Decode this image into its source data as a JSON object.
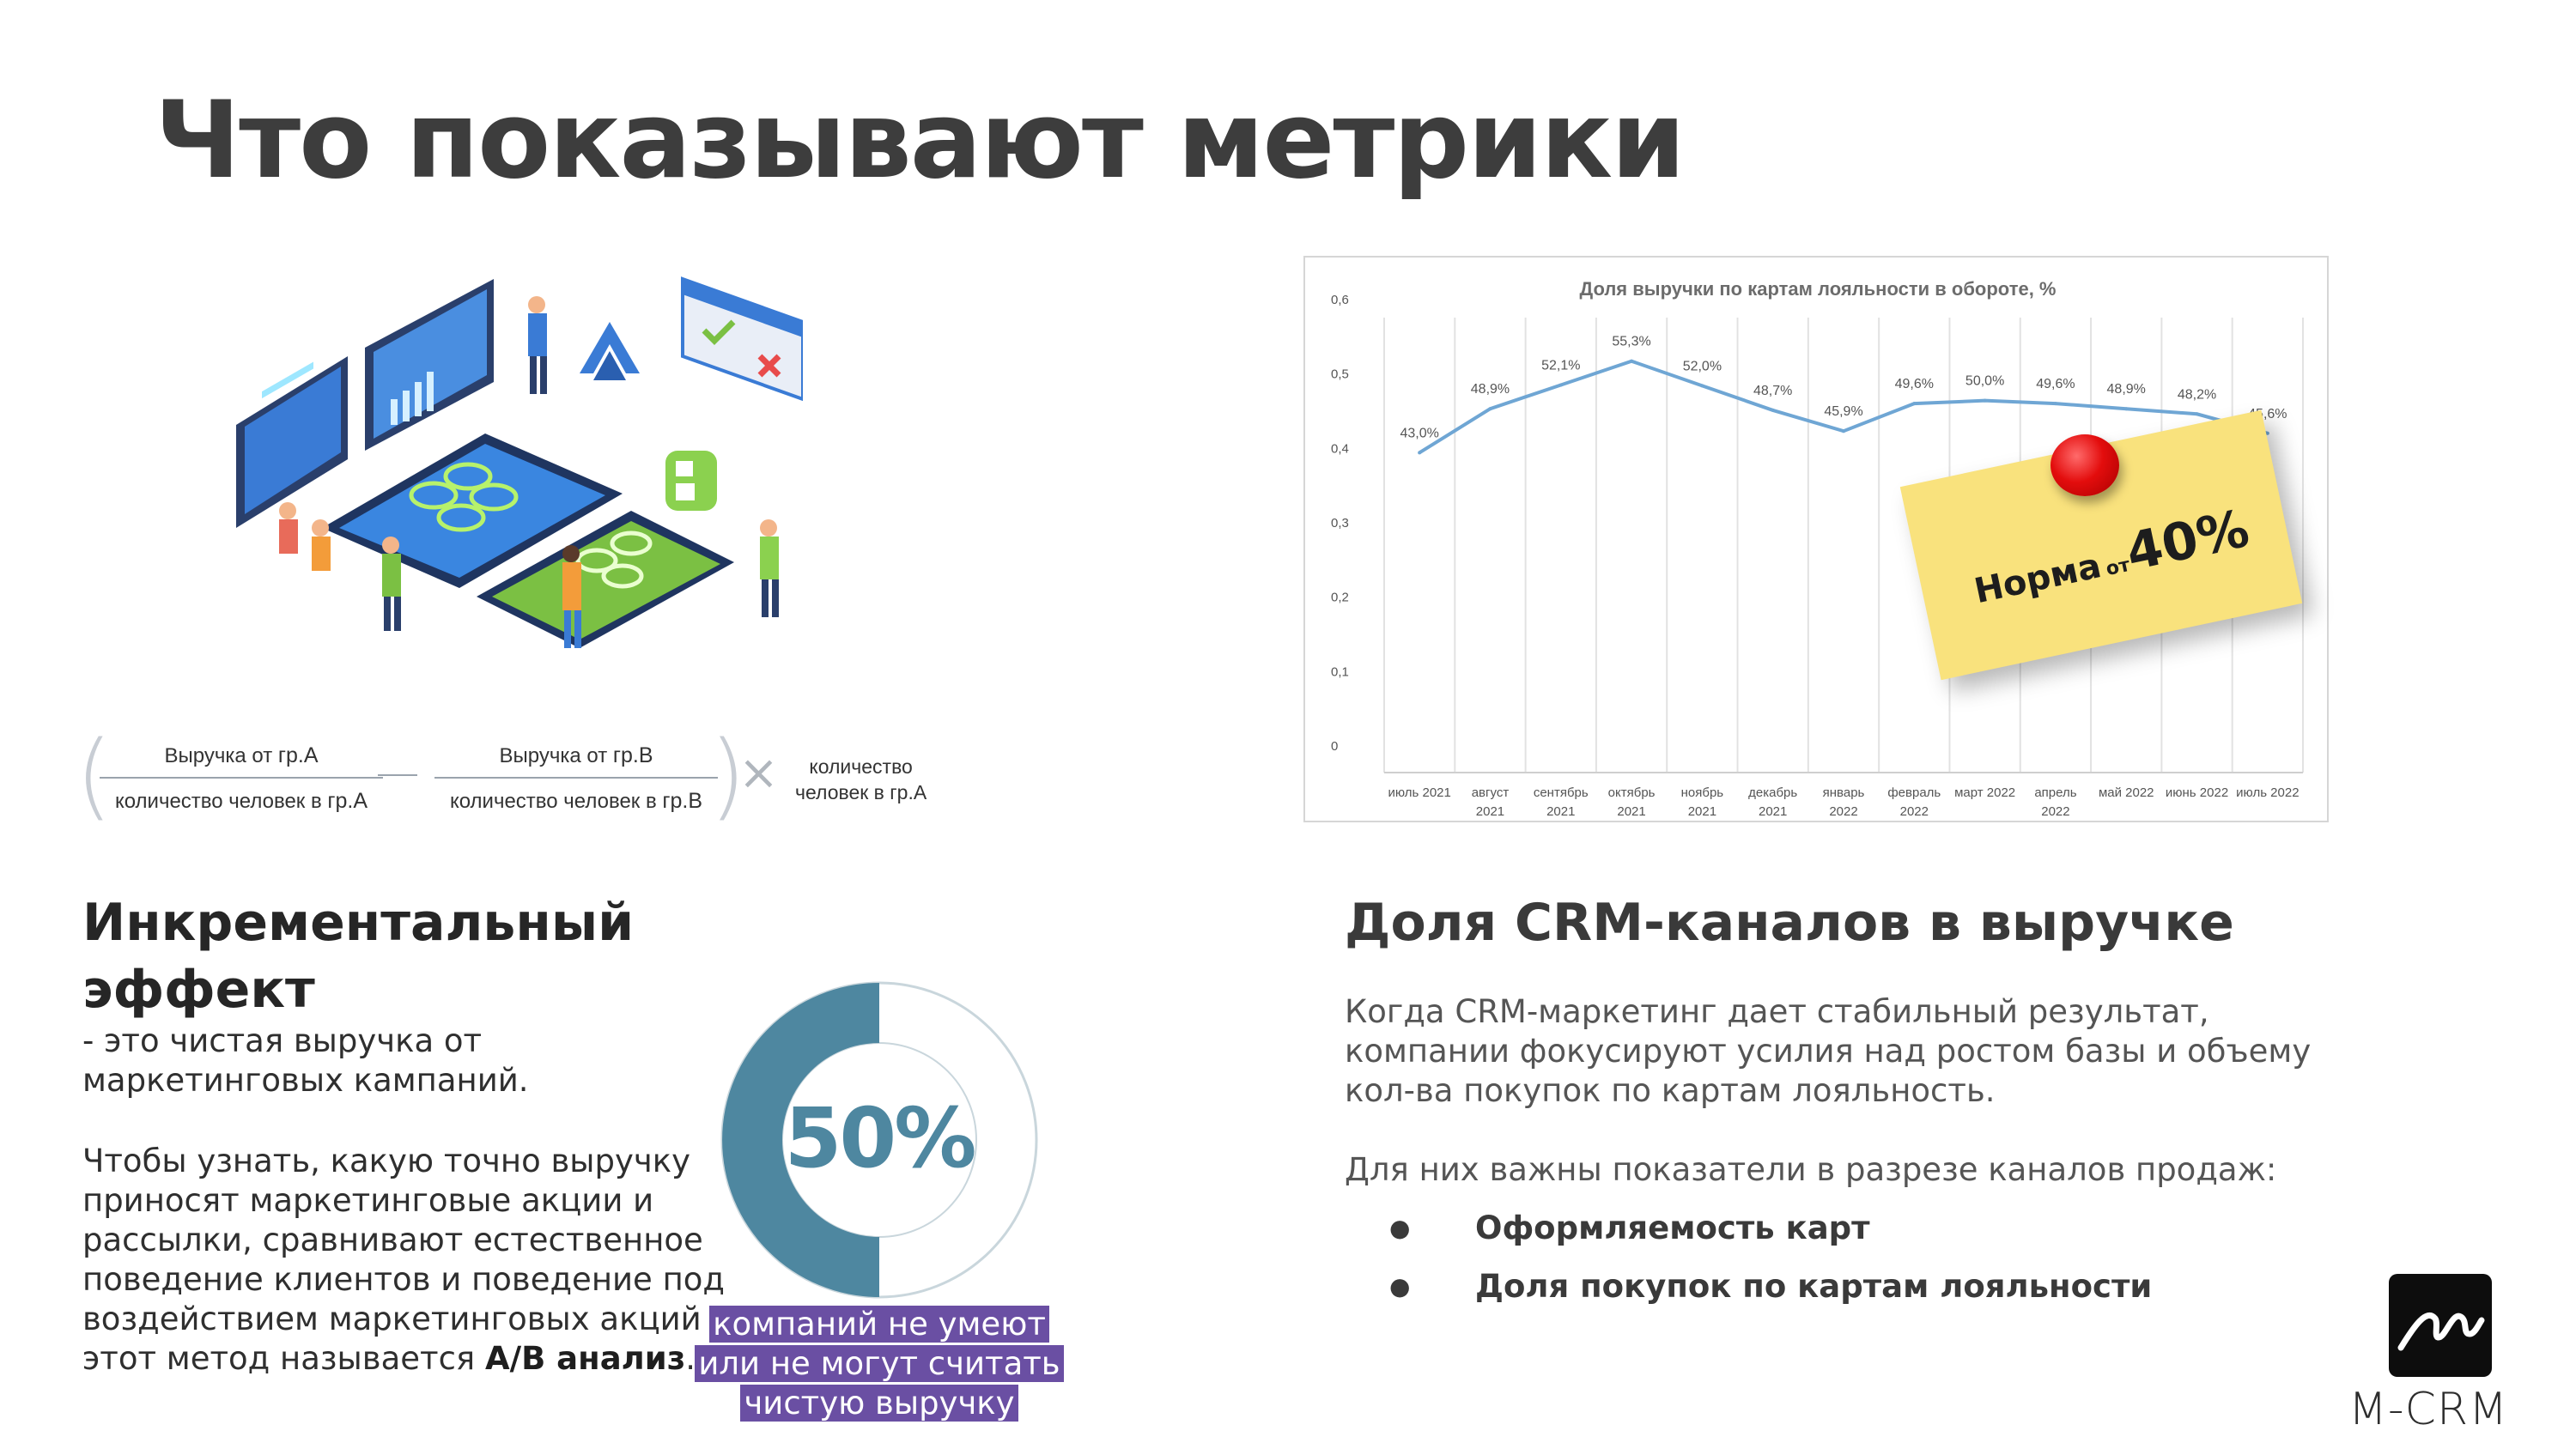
{
  "slide": {
    "title": "Что показывают метрики"
  },
  "formula": {
    "frac_a": {
      "num_prefix": "Выручка от",
      "num_group": "гр.А",
      "den_prefix": "количество человек в",
      "den_group": "гр.А"
    },
    "frac_b": {
      "num_prefix": "Выручка от",
      "num_group": "гр.В",
      "den_prefix": "количество человек в",
      "den_group": "гр.В"
    },
    "multiplier_line1": "количество",
    "multiplier_line2": "человек в гр.А"
  },
  "chart_data": {
    "type": "line",
    "title": "Доля выручки по картам лояльности в обороте, %",
    "categories": [
      [
        "июль 2021"
      ],
      [
        "август",
        "2021"
      ],
      [
        "сентябрь",
        "2021"
      ],
      [
        "октябрь",
        "2021"
      ],
      [
        "ноябрь",
        "2021"
      ],
      [
        "декабрь",
        "2021"
      ],
      [
        "январь",
        "2022"
      ],
      [
        "февраль",
        "2022"
      ],
      [
        "март 2022"
      ],
      [
        "апрель",
        "2022"
      ],
      [
        "май 2022"
      ],
      [
        "июнь 2022"
      ],
      [
        "июль 2022"
      ]
    ],
    "values": [
      0.43,
      0.489,
      0.521,
      0.553,
      0.52,
      0.487,
      0.459,
      0.496,
      0.5,
      0.496,
      0.489,
      0.482,
      0.456
    ],
    "data_labels": [
      "43,0%",
      "48,9%",
      "52,1%",
      "55,3%",
      "52,0%",
      "48,7%",
      "45,9%",
      "49,6%",
      "50,0%",
      "49,6%",
      "48,9%",
      "48,2%",
      "45,6%"
    ],
    "y_ticks": [
      "0",
      "0,1",
      "0,2",
      "0,3",
      "0,4",
      "0,5",
      "0,6"
    ],
    "ylim": [
      0,
      0.6
    ],
    "grid": "vertical",
    "line_color": "#6fa6d4"
  },
  "sticky_note": {
    "label": "Норма",
    "prep": "от",
    "value": "40%"
  },
  "left": {
    "heading": "Инкрементальный эффект",
    "definition": "- это чистая выручка от маркетинговых кампаний.",
    "body": "Чтобы узнать, какую точно выручку приносят маркетинговые акции и рассылки, сравнивают естественное поведение клиентов и поведение под воздействием маркетинговых акций - этот метод называется",
    "method": "A/B анализ",
    "period": "."
  },
  "donut": {
    "percent_value": 0.5,
    "percent_label": "50%",
    "caption": [
      "компаний не умеют",
      "или не могут считать",
      "чистую выручку"
    ],
    "color_fill": "#4e87a0",
    "color_track": "#c9d6dc"
  },
  "right": {
    "heading": "Доля CRM-каналов в выручке",
    "para1": "Когда CRM-маркетинг дает стабильный результат, компании фокусируют усилия над ростом базы и объему кол-ва покупок по картам лояльность.",
    "para2": "Для них важны показатели в разрезе каналов продаж:",
    "bullets": [
      "Оформляемость карт",
      "Доля покупок по картам лояльности"
    ]
  },
  "brand": {
    "logo_icon": "m-crm-logo-icon",
    "name": "M-CRM"
  }
}
